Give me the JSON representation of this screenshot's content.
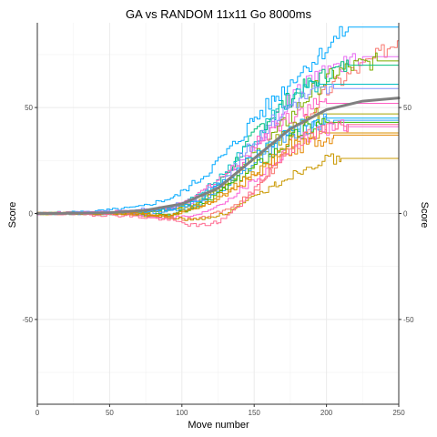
{
  "chart_data": {
    "type": "line",
    "title": "GA vs RANDOM 11x11 Go 8000ms",
    "xlabel": "Move number",
    "ylabel": "Score",
    "ylabel_right": "Score",
    "xlim": [
      0,
      250
    ],
    "ylim": [
      -90,
      90
    ],
    "x_ticks": [
      0,
      50,
      100,
      150,
      200,
      250
    ],
    "x_tick_labels": [
      "0",
      "50",
      "100",
      "150",
      "200",
      "250"
    ],
    "y_ticks": [
      -50,
      0,
      50
    ],
    "y_tick_labels": [
      "-50",
      "0",
      "50"
    ],
    "grid": true,
    "legend": "none",
    "series": [
      {
        "color": "#F8766D",
        "final": 84,
        "values": [
          [
            0,
            0
          ],
          [
            60,
            0
          ],
          [
            90,
            -2
          ],
          [
            110,
            -3
          ],
          [
            130,
            2
          ],
          [
            150,
            10
          ],
          [
            170,
            28
          ],
          [
            185,
            45
          ],
          [
            200,
            58
          ],
          [
            215,
            66
          ],
          [
            230,
            72
          ],
          [
            245,
            80
          ],
          [
            250,
            84
          ]
        ]
      },
      {
        "color": "#E76BF3",
        "final": 74,
        "values": [
          [
            0,
            0
          ],
          [
            60,
            1
          ],
          [
            90,
            3
          ],
          [
            110,
            6
          ],
          [
            130,
            15
          ],
          [
            150,
            32
          ],
          [
            165,
            45
          ],
          [
            180,
            58
          ],
          [
            195,
            66
          ],
          [
            210,
            70
          ],
          [
            225,
            74
          ],
          [
            250,
            74
          ]
        ]
      },
      {
        "color": "#00A9FF",
        "final": 88,
        "values": [
          [
            0,
            0
          ],
          [
            40,
            1
          ],
          [
            70,
            3
          ],
          [
            95,
            8
          ],
          [
            115,
            18
          ],
          [
            135,
            32
          ],
          [
            150,
            45
          ],
          [
            165,
            55
          ],
          [
            180,
            66
          ],
          [
            195,
            75
          ],
          [
            205,
            82
          ],
          [
            215,
            88
          ],
          [
            250,
            88
          ]
        ]
      },
      {
        "color": "#7CAE00",
        "final": 72,
        "values": [
          [
            0,
            0
          ],
          [
            60,
            0
          ],
          [
            90,
            2
          ],
          [
            110,
            5
          ],
          [
            130,
            14
          ],
          [
            150,
            28
          ],
          [
            170,
            42
          ],
          [
            190,
            58
          ],
          [
            205,
            66
          ],
          [
            220,
            70
          ],
          [
            235,
            72
          ],
          [
            250,
            72
          ]
        ]
      },
      {
        "color": "#00BF7D",
        "final": 70,
        "values": [
          [
            0,
            0
          ],
          [
            60,
            0
          ],
          [
            90,
            -1
          ],
          [
            110,
            4
          ],
          [
            125,
            14
          ],
          [
            140,
            28
          ],
          [
            155,
            42
          ],
          [
            170,
            52
          ],
          [
            185,
            60
          ],
          [
            200,
            66
          ],
          [
            215,
            70
          ],
          [
            250,
            70
          ]
        ]
      },
      {
        "color": "#00BFC4",
        "final": 61,
        "values": [
          [
            0,
            0
          ],
          [
            60,
            0
          ],
          [
            90,
            2
          ],
          [
            110,
            8
          ],
          [
            130,
            20
          ],
          [
            150,
            36
          ],
          [
            165,
            48
          ],
          [
            180,
            56
          ],
          [
            195,
            61
          ],
          [
            250,
            61
          ]
        ]
      },
      {
        "color": "#8494FF",
        "final": 59,
        "values": [
          [
            0,
            0
          ],
          [
            60,
            1
          ],
          [
            90,
            3
          ],
          [
            110,
            7
          ],
          [
            130,
            18
          ],
          [
            145,
            30
          ],
          [
            160,
            42
          ],
          [
            175,
            52
          ],
          [
            190,
            57
          ],
          [
            205,
            59
          ],
          [
            250,
            59
          ]
        ]
      },
      {
        "color": "#FF61C3",
        "final": 52,
        "values": [
          [
            0,
            0
          ],
          [
            60,
            1
          ],
          [
            90,
            2
          ],
          [
            105,
            6
          ],
          [
            120,
            14
          ],
          [
            140,
            24
          ],
          [
            155,
            36
          ],
          [
            170,
            44
          ],
          [
            185,
            50
          ],
          [
            200,
            52
          ],
          [
            250,
            52
          ]
        ]
      },
      {
        "color": "#A3A500",
        "final": 47,
        "values": [
          [
            0,
            0
          ],
          [
            60,
            0
          ],
          [
            90,
            1
          ],
          [
            110,
            5
          ],
          [
            130,
            14
          ],
          [
            150,
            24
          ],
          [
            165,
            34
          ],
          [
            180,
            42
          ],
          [
            195,
            47
          ],
          [
            250,
            47
          ]
        ]
      },
      {
        "color": "#00B0F6",
        "final": 45,
        "values": [
          [
            0,
            0
          ],
          [
            60,
            0
          ],
          [
            90,
            2
          ],
          [
            110,
            6
          ],
          [
            130,
            16
          ],
          [
            150,
            28
          ],
          [
            170,
            38
          ],
          [
            185,
            43
          ],
          [
            200,
            45
          ],
          [
            250,
            45
          ]
        ]
      },
      {
        "color": "#35A2FF",
        "final": 44,
        "values": [
          [
            0,
            0
          ],
          [
            60,
            0
          ],
          [
            90,
            1
          ],
          [
            110,
            4
          ],
          [
            130,
            12
          ],
          [
            150,
            24
          ],
          [
            170,
            34
          ],
          [
            190,
            42
          ],
          [
            205,
            44
          ],
          [
            250,
            44
          ]
        ]
      },
      {
        "color": "#39B600",
        "final": 43,
        "values": [
          [
            0,
            0
          ],
          [
            60,
            0
          ],
          [
            90,
            -1
          ],
          [
            110,
            3
          ],
          [
            130,
            12
          ],
          [
            150,
            22
          ],
          [
            170,
            32
          ],
          [
            185,
            40
          ],
          [
            200,
            43
          ],
          [
            250,
            43
          ]
        ]
      },
      {
        "color": "#D89000",
        "final": 38,
        "values": [
          [
            0,
            0
          ],
          [
            60,
            0
          ],
          [
            90,
            -1
          ],
          [
            110,
            3
          ],
          [
            130,
            10
          ],
          [
            150,
            20
          ],
          [
            170,
            30
          ],
          [
            185,
            36
          ],
          [
            200,
            38
          ],
          [
            250,
            38
          ]
        ]
      },
      {
        "color": "#FB61D7",
        "final": 41,
        "values": [
          [
            0,
            0
          ],
          [
            60,
            0
          ],
          [
            90,
            -2
          ],
          [
            110,
            -1
          ],
          [
            130,
            6
          ],
          [
            150,
            16
          ],
          [
            170,
            28
          ],
          [
            185,
            36
          ],
          [
            200,
            40
          ],
          [
            215,
            41
          ],
          [
            250,
            41
          ]
        ]
      },
      {
        "color": "#E58700",
        "final": 37,
        "values": [
          [
            0,
            0
          ],
          [
            60,
            0
          ],
          [
            90,
            -1
          ],
          [
            110,
            2
          ],
          [
            130,
            9
          ],
          [
            150,
            18
          ],
          [
            170,
            28
          ],
          [
            190,
            34
          ],
          [
            205,
            37
          ],
          [
            250,
            37
          ]
        ]
      },
      {
        "color": "#C99800",
        "final": 26,
        "values": [
          [
            0,
            0
          ],
          [
            60,
            0
          ],
          [
            90,
            -2
          ],
          [
            110,
            -3
          ],
          [
            130,
            0
          ],
          [
            150,
            8
          ],
          [
            165,
            14
          ],
          [
            180,
            20
          ],
          [
            195,
            25
          ],
          [
            210,
            26
          ],
          [
            250,
            26
          ]
        ]
      },
      {
        "color": "#FF6C91",
        "final": 42,
        "values": [
          [
            0,
            0
          ],
          [
            60,
            -1
          ],
          [
            90,
            -3
          ],
          [
            110,
            -6
          ],
          [
            125,
            -4
          ],
          [
            140,
            4
          ],
          [
            155,
            16
          ],
          [
            170,
            28
          ],
          [
            185,
            36
          ],
          [
            200,
            40
          ],
          [
            215,
            42
          ],
          [
            250,
            42
          ]
        ]
      }
    ],
    "trend": {
      "color": "#808080",
      "values": [
        [
          0,
          0
        ],
        [
          25,
          0.1
        ],
        [
          50,
          0.4
        ],
        [
          75,
          1.5
        ],
        [
          100,
          4.5
        ],
        [
          125,
          12
        ],
        [
          150,
          26
        ],
        [
          175,
          40
        ],
        [
          200,
          49
        ],
        [
          225,
          53
        ],
        [
          250,
          54.5
        ]
      ]
    }
  }
}
